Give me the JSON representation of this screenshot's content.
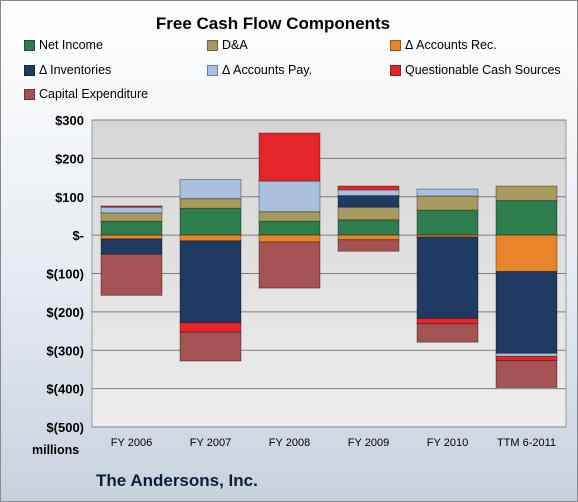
{
  "chart_data": {
    "type": "bar",
    "stacked": true,
    "title": "Free Cash Flow Components",
    "units_label": "millions",
    "company": "The Andersons, Inc.",
    "categories": [
      "FY 2006",
      "FY 2007",
      "FY 2008",
      "FY 2009",
      "FY 2010",
      "TTM 6-2011"
    ],
    "ylim": [
      -500,
      300
    ],
    "yticks": [
      300,
      200,
      100,
      0,
      -100,
      -200,
      -300,
      -400,
      -500
    ],
    "ytick_labels": [
      "$300",
      "$200",
      "$100",
      "$-",
      "$(100)",
      "$(200)",
      "$(300)",
      "$(400)",
      "$(500)"
    ],
    "grid": true,
    "legend_position": "top",
    "series": [
      {
        "name": "Net Income",
        "color": "#2e7d4f",
        "values": [
          36,
          70,
          36,
          40,
          65,
          90
        ]
      },
      {
        "name": "D&A",
        "color": "#a89a5e",
        "values": [
          22,
          25,
          25,
          33,
          37,
          38
        ]
      },
      {
        "name": "Δ Accounts Rec.",
        "color": "#e8852a",
        "values": [
          -10,
          -15,
          -18,
          -12,
          -5,
          -95
        ]
      },
      {
        "name": "Δ Inventories",
        "color": "#1f3b63",
        "values": [
          -40,
          -213,
          0,
          30,
          -212,
          -213
        ]
      },
      {
        "name": "Δ Accounts Pay.",
        "color": "#a9c1de",
        "values": [
          15,
          50,
          80,
          15,
          18,
          -8
        ]
      },
      {
        "name": "Questionable Cash Sources",
        "color": "#e4262a",
        "values": [
          3,
          -25,
          125,
          10,
          -14,
          -11
        ]
      },
      {
        "name": "Capital Expenditure",
        "color": "#a45252",
        "values": [
          -107,
          -75,
          -120,
          -30,
          -48,
          -70
        ]
      }
    ]
  }
}
